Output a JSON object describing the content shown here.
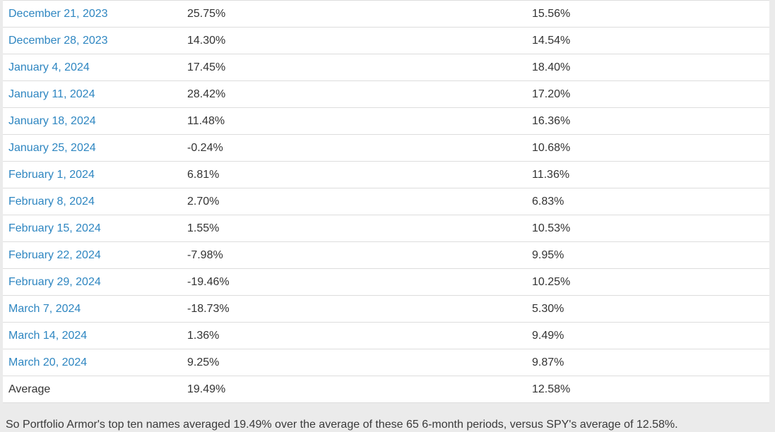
{
  "table": {
    "rows": [
      {
        "date": "December 21, 2023",
        "portfolio_return": "25.75%",
        "spy_return": "15.56%"
      },
      {
        "date": "December 28, 2023",
        "portfolio_return": "14.30%",
        "spy_return": "14.54%"
      },
      {
        "date": "January 4, 2024",
        "portfolio_return": "17.45%",
        "spy_return": "18.40%"
      },
      {
        "date": "January 11, 2024",
        "portfolio_return": "28.42%",
        "spy_return": "17.20%"
      },
      {
        "date": "January 18, 2024",
        "portfolio_return": "11.48%",
        "spy_return": "16.36%"
      },
      {
        "date": "January 25, 2024",
        "portfolio_return": "-0.24%",
        "spy_return": "10.68%"
      },
      {
        "date": "February 1, 2024",
        "portfolio_return": "6.81%",
        "spy_return": "11.36%"
      },
      {
        "date": "February 8, 2024",
        "portfolio_return": "2.70%",
        "spy_return": "6.83%"
      },
      {
        "date": "February 15, 2024",
        "portfolio_return": "1.55%",
        "spy_return": "10.53%"
      },
      {
        "date": "February 22, 2024",
        "portfolio_return": "-7.98%",
        "spy_return": "9.95%"
      },
      {
        "date": "February 29, 2024",
        "portfolio_return": "-19.46%",
        "spy_return": "10.25%"
      },
      {
        "date": "March 7, 2024",
        "portfolio_return": "-18.73%",
        "spy_return": "5.30%"
      },
      {
        "date": "March 14, 2024",
        "portfolio_return": "1.36%",
        "spy_return": "9.49%"
      },
      {
        "date": "March 20, 2024",
        "portfolio_return": "9.25%",
        "spy_return": "9.87%"
      }
    ],
    "footer": {
      "label": "Average",
      "portfolio_return": "19.49%",
      "spy_return": "12.58%"
    }
  },
  "summary": {
    "text": "So Portfolio Armor's top ten names averaged 19.49% over the average of these 65 6-month periods, versus SPY's average of 12.58%."
  },
  "colors": {
    "link": "#2e86c1",
    "border": "#dddddd",
    "page_bg": "#ebebeb",
    "text": "#333333",
    "table_bg": "#ffffff"
  }
}
